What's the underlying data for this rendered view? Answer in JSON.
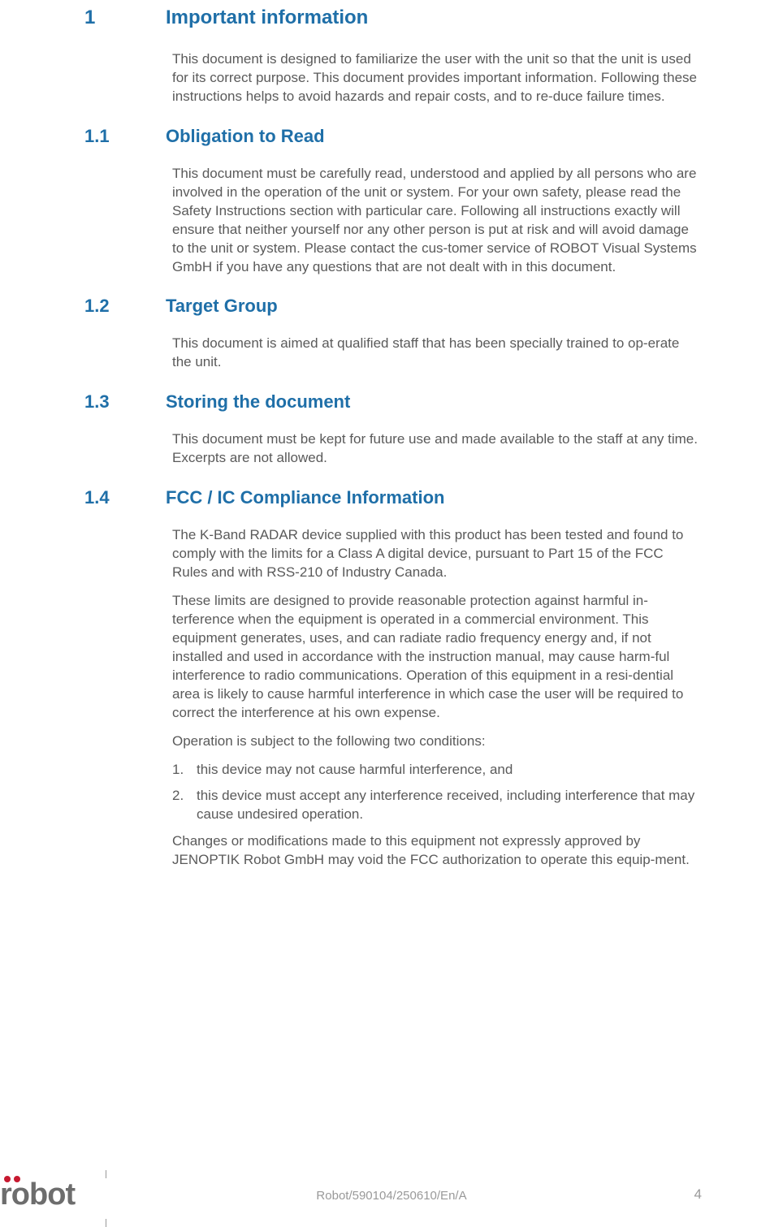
{
  "section1": {
    "num": "1",
    "title": "Important information",
    "body": "This document is designed to familiarize the user with the unit so that the unit is used for its correct purpose. This document provides important information. Following these instructions helps to avoid hazards and repair costs, and to re-duce failure times."
  },
  "section1_1": {
    "num": "1.1",
    "title": "Obligation to Read",
    "body": "This document must be carefully read, understood and applied by all persons who are involved in the operation of the unit or system. For your own safety, please read the Safety Instructions section with particular care. Following all instructions exactly will ensure that neither yourself nor any other person is put at risk and will avoid damage to the unit or system. Please contact the cus-tomer service of ROBOT Visual Systems GmbH if you have any questions that are not dealt with in this document."
  },
  "section1_2": {
    "num": "1.2",
    "title": "Target Group",
    "body": "This document is aimed at qualified staff that has been specially trained to op-erate the unit."
  },
  "section1_3": {
    "num": "1.3",
    "title": "Storing the document",
    "body": "This document must be kept for future use and made available to the staff at any time. Excerpts are not allowed."
  },
  "section1_4": {
    "num": "1.4",
    "title": "FCC / IC Compliance Information",
    "p1": "The K-Band RADAR device supplied with this product has been tested and found to comply with the limits for a Class A digital device, pursuant to Part 15 of the FCC Rules and with RSS-210 of Industry Canada.",
    "p2": "These limits are designed to provide reasonable protection against harmful in-terference when the equipment is operated in a commercial environment. This equipment generates, uses, and can radiate radio frequency energy and, if not installed and used in accordance with the instruction manual, may cause harm-ful interference to radio communications. Operation of this equipment in a resi-dential area is likely to cause harmful interference in which case the user will be required to correct the interference at his own expense.",
    "p3": "Operation is subject to the following two conditions:",
    "list1_num": "1.",
    "list1": "this device may not cause harmful interference, and",
    "list2_num": "2.",
    "list2": "this device must accept any interference received, including interference that may cause undesired operation.",
    "p4": "Changes or modifications made to this equipment not expressly approved by JENOPTIK Robot GmbH may void the FCC authorization to operate this equip-ment."
  },
  "footer": {
    "logo_text": "robot",
    "center": "Robot/590104/250610/En/A",
    "page": "4"
  },
  "colors": {
    "heading": "#1f6fa8",
    "body": "#5a5a5a",
    "footer": "#999999",
    "logo_accent": "#c71930"
  }
}
